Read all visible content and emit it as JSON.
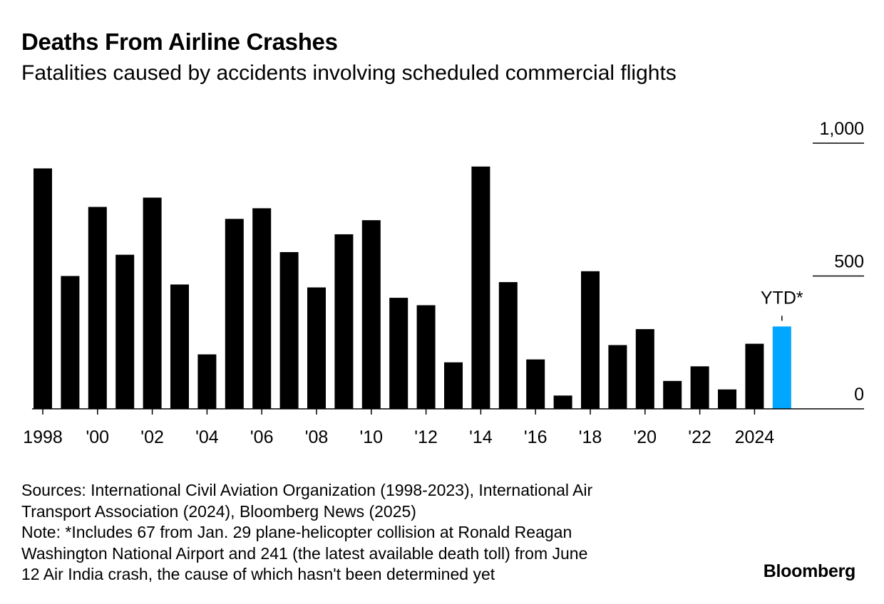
{
  "header": {
    "title": "Deaths From Airline Crashes",
    "subtitle": "Fatalities caused by accidents involving scheduled commercial flights"
  },
  "chart_data": {
    "type": "bar",
    "categories": [
      "1998",
      "1999",
      "2000",
      "2001",
      "2002",
      "2003",
      "2004",
      "2005",
      "2006",
      "2007",
      "2008",
      "2009",
      "2010",
      "2011",
      "2012",
      "2013",
      "2014",
      "2015",
      "2016",
      "2017",
      "2018",
      "2019",
      "2020",
      "2021",
      "2022",
      "2023",
      "2024",
      "2025"
    ],
    "values": [
      905,
      500,
      760,
      580,
      795,
      468,
      205,
      715,
      755,
      590,
      457,
      657,
      710,
      418,
      390,
      175,
      912,
      477,
      186,
      50,
      518,
      240,
      300,
      105,
      160,
      73,
      245,
      310
    ],
    "highlight": {
      "index": 27,
      "label": "YTD*",
      "color": "#00a6ff"
    },
    "bar_color": "#000000",
    "ylim": [
      0,
      1000
    ],
    "yticks": [
      0,
      500,
      1000
    ],
    "ytick_labels": [
      "0",
      "500",
      "1,000"
    ],
    "xtick_labels": [
      "1998",
      "'00",
      "'02",
      "'04",
      "'06",
      "'08",
      "'10",
      "'12",
      "'14",
      "'16",
      "'18",
      "'20",
      "'22",
      "2024"
    ],
    "xtick_every": 2,
    "grid": false,
    "xlabel": "",
    "ylabel": ""
  },
  "footer": {
    "notes_lines": [
      "Sources: International Civil Aviation Organization (1998-2023), International Air",
      "Transport Association (2024), Bloomberg News (2025)",
      "Note: *Includes 67 from Jan. 29 plane-helicopter collision at Ronald Reagan",
      "Washington National Airport and 241 (the latest available death toll) from June",
      "12 Air India crash, the cause of which hasn't been determined yet"
    ],
    "brand": "Bloomberg"
  }
}
